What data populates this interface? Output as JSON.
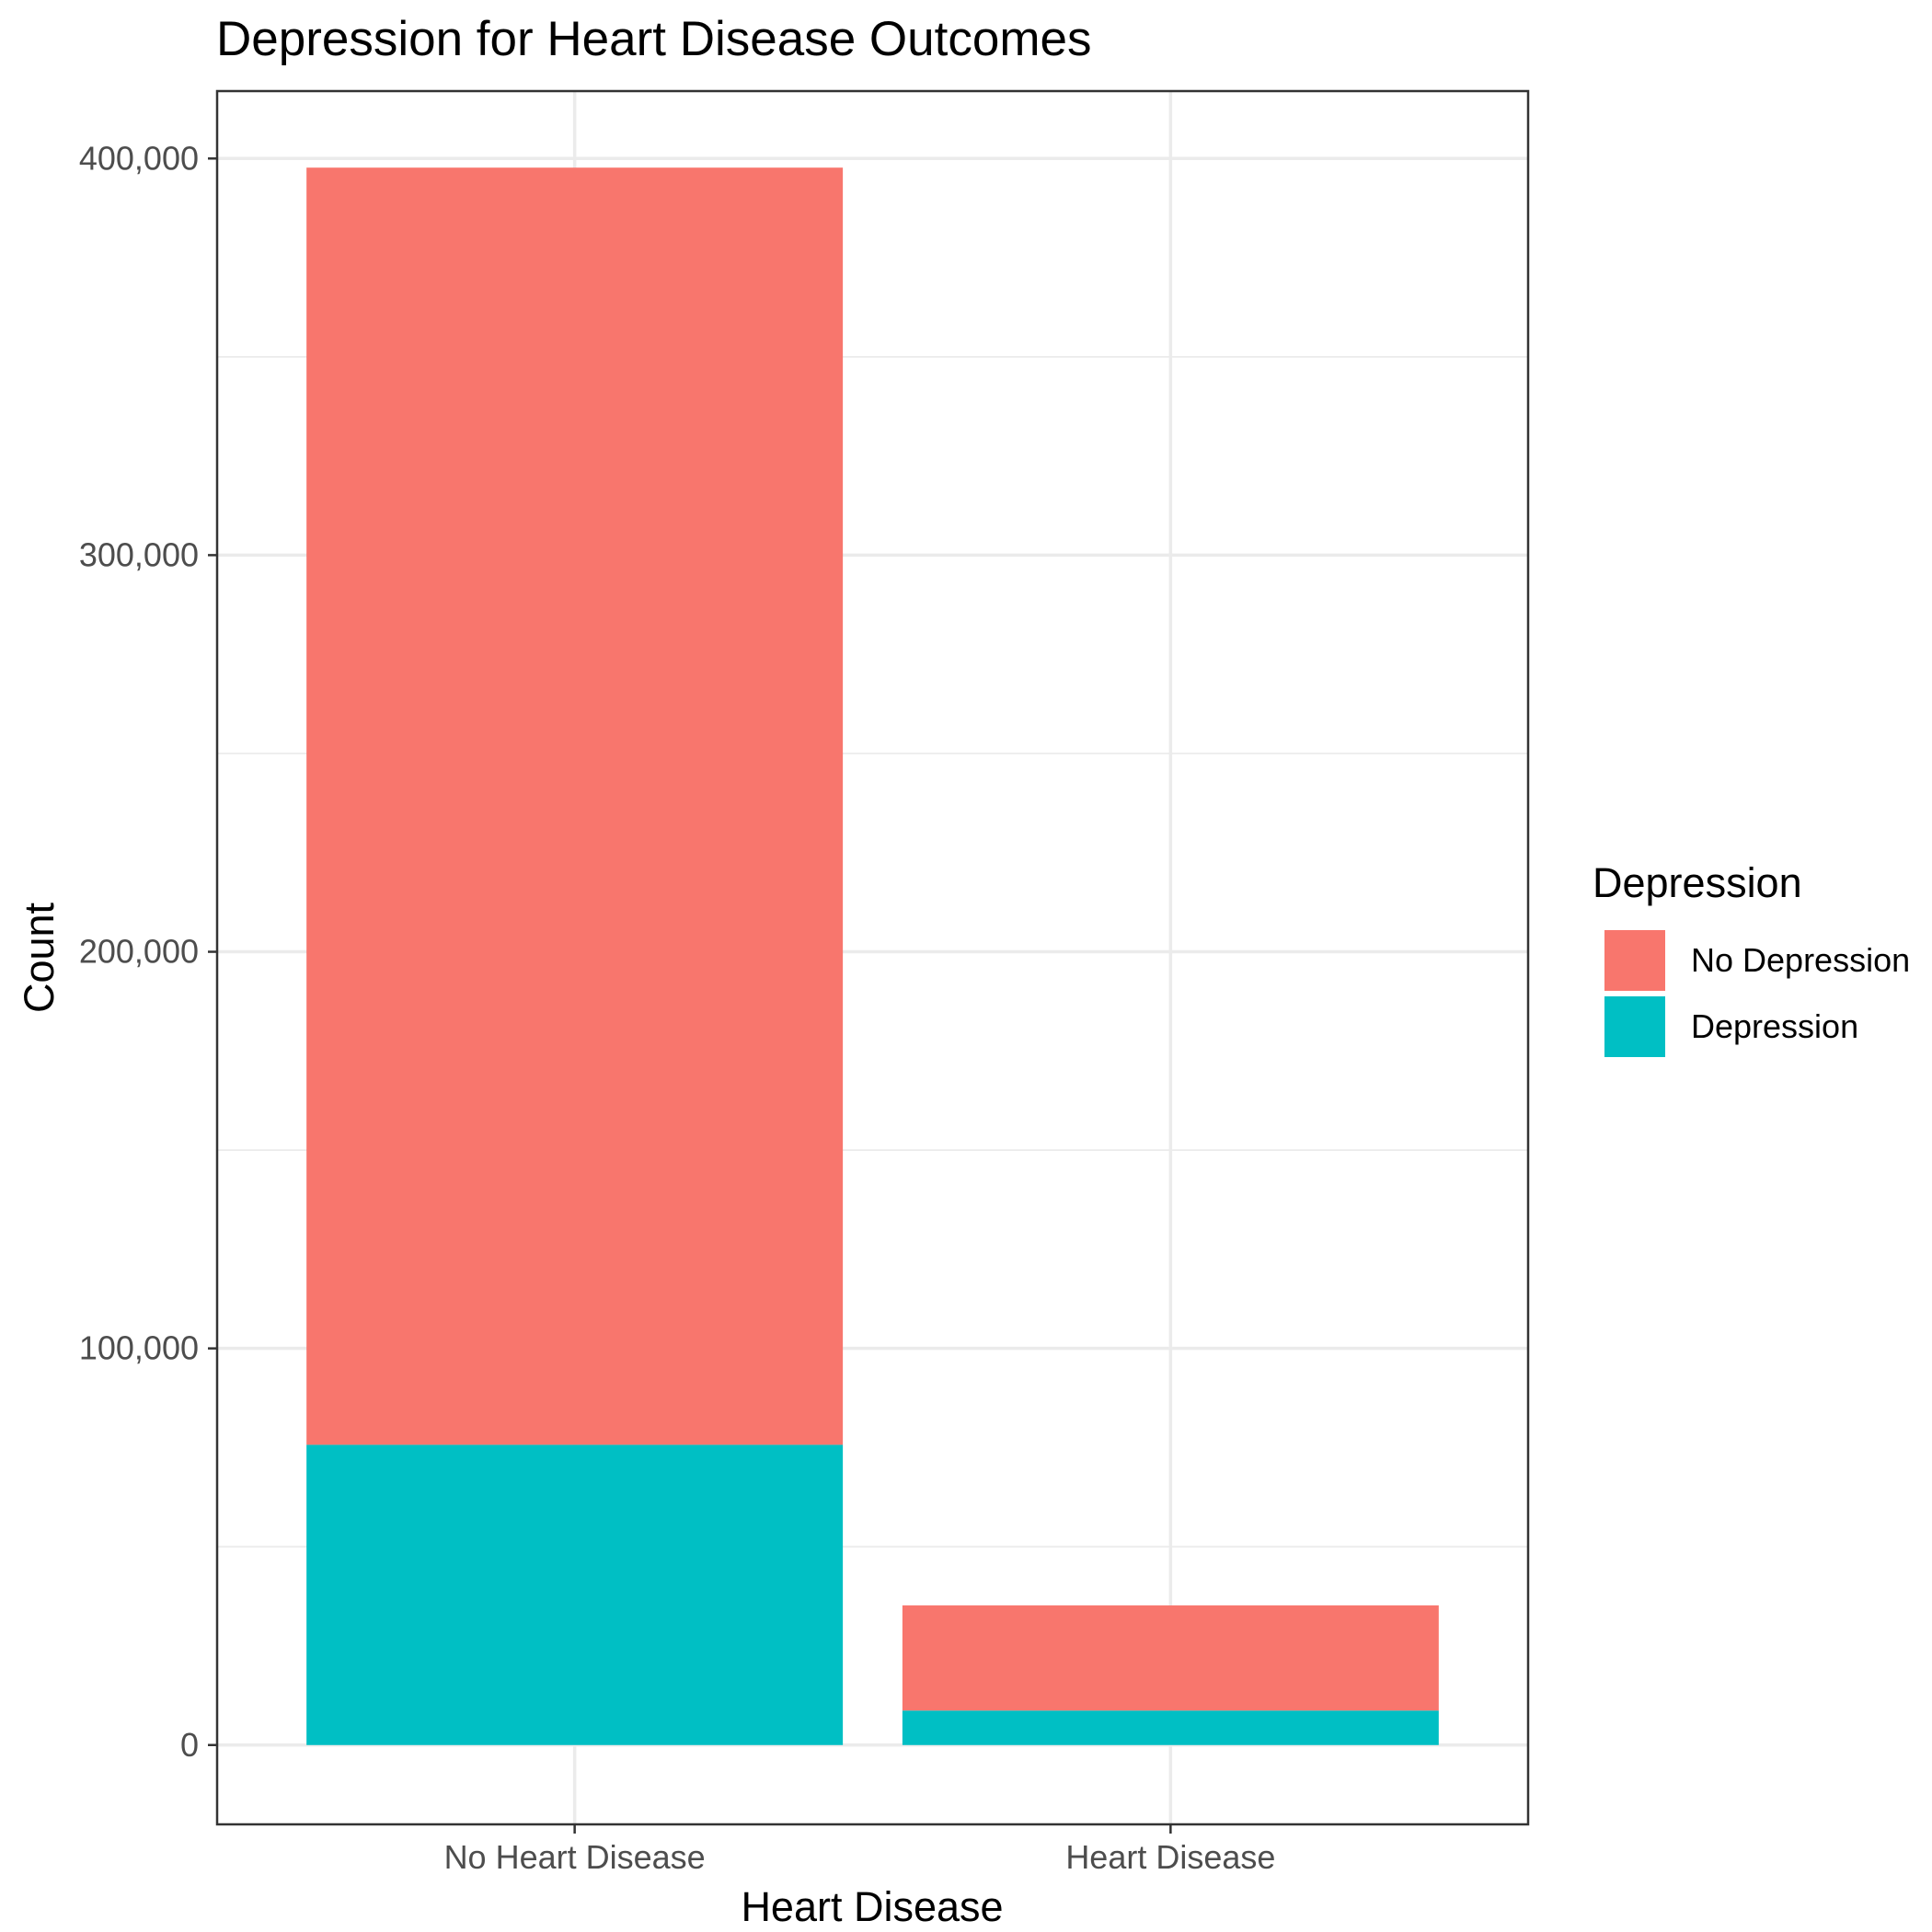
{
  "chart_data": {
    "type": "bar",
    "stacked": true,
    "title": "Depression for Heart Disease Outcomes",
    "xlabel": "Heart Disease",
    "ylabel": "Count",
    "categories": [
      "No Heart Disease",
      "Heart Disease"
    ],
    "series": [
      {
        "name": "No Depression",
        "color": "#F8766D",
        "values": [
          322000,
          26500
        ]
      },
      {
        "name": "Depression",
        "color": "#00BFC4",
        "values": [
          75700,
          8700
        ]
      }
    ],
    "ylim": [
      -20000,
      417000
    ],
    "y_major_ticks": [
      0,
      100000,
      200000,
      300000,
      400000
    ],
    "y_tick_labels": [
      "0",
      "100,000",
      "200,000",
      "300,000",
      "400,000"
    ],
    "y_minor_ticks": [
      50000,
      150000,
      250000,
      350000
    ],
    "legend": {
      "title": "Depression",
      "position": "right",
      "order": [
        "No Depression",
        "Depression"
      ]
    },
    "grid": true,
    "theme": "bw"
  }
}
